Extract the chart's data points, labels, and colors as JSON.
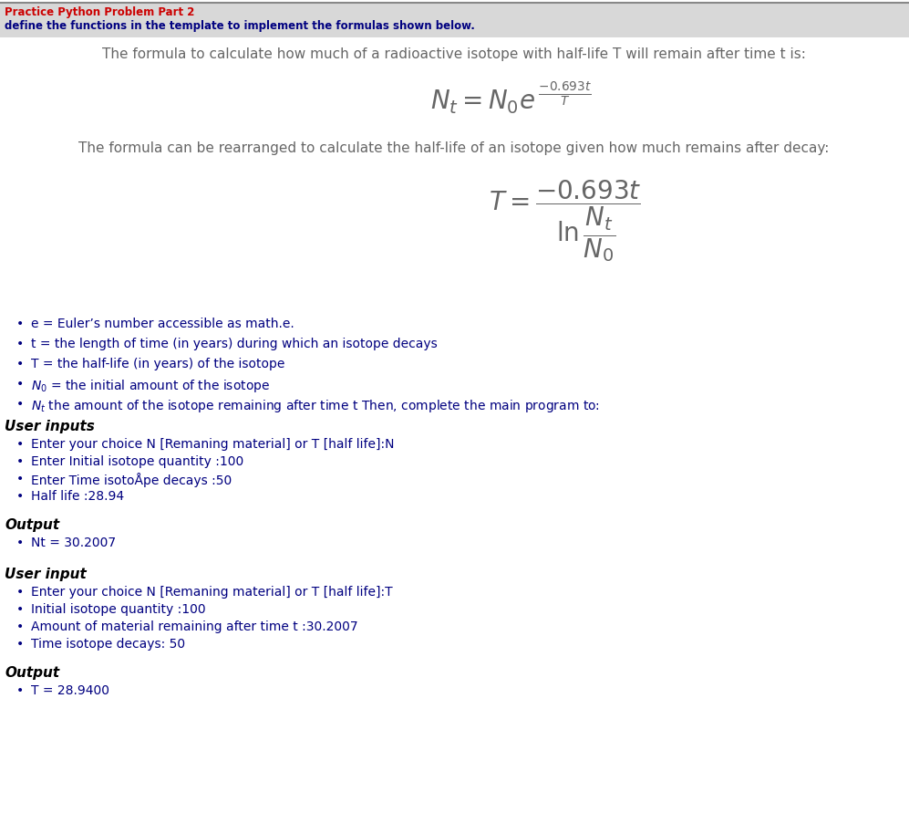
{
  "title_line1": "Practice Python Problem Part 2",
  "title_line2": "define the functions in the template to implement the formulas shown below.",
  "header_bg_color": "#d8d8d8",
  "header_text_color": "#cc0000",
  "header_subtext_color": "#000080",
  "body_text_color": "#666666",
  "bullet_text_color": "#000080",
  "bold_text_color": "#000000",
  "formula1_text": "The formula to calculate how much of a radioactive isotope with half-life T will remain after time t is:",
  "formula2_text": "The formula can be rearranged to calculate the half-life of an isotope given how much remains after decay:",
  "bullet_items": [
    "e = Euler’s number accessible as math.e.",
    "t = the length of time (in years) during which an isotope decays",
    "T = the half-life (in years) of the isotope",
    "N0_item",
    "Nt_item"
  ],
  "user_inputs_header": "User inputs",
  "user_inputs": [
    "Enter your choice N [Remaning material] or T [half life]:N",
    "Enter Initial isotope quantity :100",
    "Enter Time isotoÅpe decays :50",
    "Half life :28.94"
  ],
  "output1_header": "Output",
  "output1_items": [
    "Nt = 30.2007"
  ],
  "user_input2_header": "User input",
  "user_inputs2": [
    "Enter your choice N [Remaning material] or T [half life]:T",
    "Initial isotope quantity :100",
    "Amount of material remaining after time t :30.2007",
    "Time isotope decays: 50"
  ],
  "output2_header": "Output",
  "output2_items": [
    "T = 28.9400"
  ],
  "background_color": "#ffffff",
  "top_border_color": "#888888"
}
